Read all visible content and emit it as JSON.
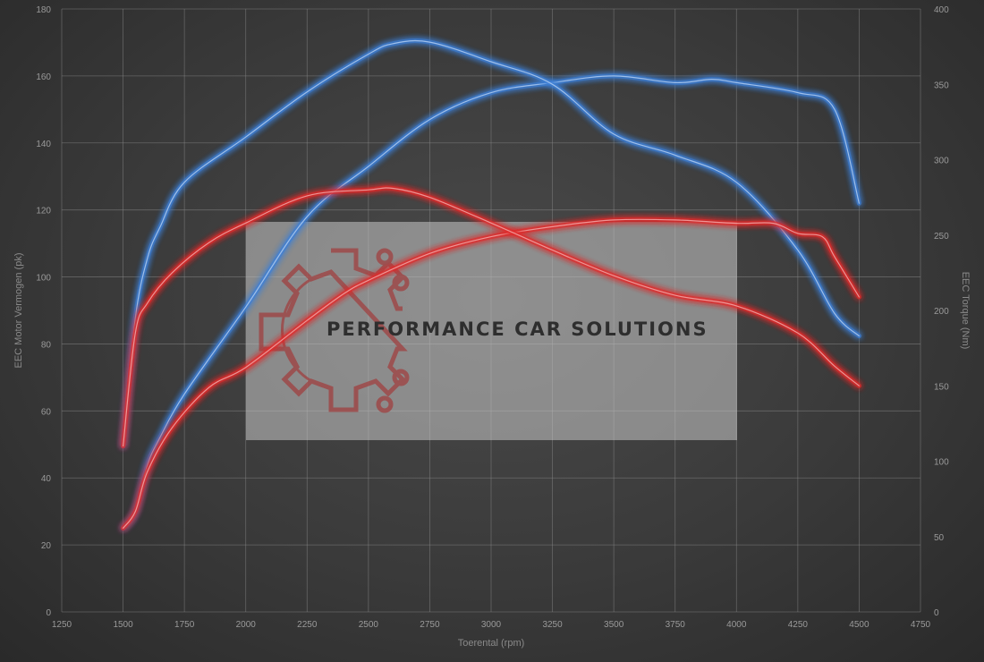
{
  "chart_data": {
    "type": "line",
    "xlabel": "Toerental (rpm)",
    "ylabel_left": "EEC Motor Vermogen (pk)",
    "ylabel_right": "EEC Torque (Nm)",
    "xlim": [
      1250,
      4750
    ],
    "ylim_left": [
      0,
      180
    ],
    "ylim_right": [
      0,
      400
    ],
    "x_ticks": [
      1250,
      1500,
      1750,
      2000,
      2250,
      2500,
      2750,
      3000,
      3250,
      3500,
      3750,
      4000,
      4250,
      4500,
      4750
    ],
    "y_ticks_left": [
      0,
      20,
      40,
      60,
      80,
      100,
      120,
      140,
      160,
      180
    ],
    "y_ticks_right": [
      0,
      50,
      100,
      150,
      200,
      250,
      300,
      350,
      400
    ],
    "grid": true,
    "series": [
      {
        "axis": "left",
        "color": "#3d7fd6",
        "x": [
          1500,
          1550,
          1600,
          1650,
          1750,
          2000,
          2250,
          2500,
          2750,
          3000,
          3250,
          3500,
          3750,
          3900,
          4000,
          4250,
          4400,
          4500
        ],
        "y": [
          25,
          30,
          44,
          52,
          65,
          91,
          118,
          133,
          147,
          155,
          158,
          160,
          158,
          159,
          158,
          155,
          150,
          122
        ]
      },
      {
        "axis": "right",
        "color": "#3d7fd6",
        "x": [
          1500,
          1550,
          1600,
          1650,
          1750,
          2000,
          2250,
          2500,
          2600,
          2750,
          3000,
          3250,
          3500,
          3750,
          4000,
          4250,
          4400,
          4500
        ],
        "y": [
          110,
          195,
          235,
          255,
          285,
          315,
          345,
          370,
          377,
          378,
          365,
          350,
          317,
          303,
          285,
          240,
          198,
          183
        ]
      },
      {
        "axis": "left",
        "color": "#e02a2a",
        "x": [
          1500,
          1550,
          1600,
          1700,
          1850,
          2000,
          2250,
          2400,
          2500,
          2750,
          3000,
          3250,
          3500,
          3750,
          4000,
          4150,
          4250,
          4350,
          4400,
          4500
        ],
        "y": [
          25,
          30,
          42,
          55,
          67,
          73,
          87,
          95,
          99,
          107,
          112,
          115,
          117,
          117,
          116,
          116,
          113,
          112,
          106,
          94
        ]
      },
      {
        "axis": "right",
        "color": "#e02a2a",
        "x": [
          1500,
          1550,
          1600,
          1700,
          1850,
          2000,
          2250,
          2500,
          2600,
          2750,
          3000,
          3250,
          3500,
          3750,
          4000,
          4250,
          4400,
          4500
        ],
        "y": [
          110,
          185,
          205,
          225,
          245,
          258,
          276,
          280,
          281,
          275,
          258,
          240,
          223,
          210,
          203,
          185,
          163,
          150
        ]
      }
    ]
  },
  "watermark": {
    "text": "PERFORMANCE CAR SOLUTIONS"
  }
}
